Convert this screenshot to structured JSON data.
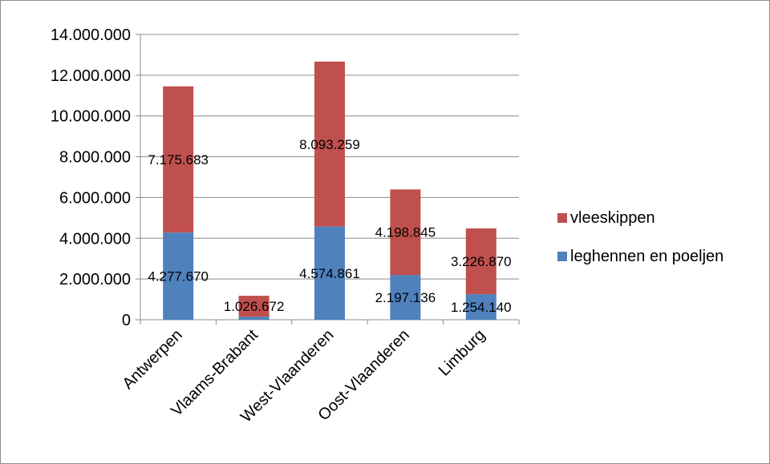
{
  "chart_data": {
    "type": "bar",
    "stacked": true,
    "categories": [
      "Antwerpen",
      "Vlaams-Brabant",
      "West-Vlaanderen",
      "Oost-Vlaanderen",
      "Limburg"
    ],
    "series": [
      {
        "name": "leghennen en poeljen",
        "color": "#4f81bd",
        "values": [
          4277670,
          150000,
          4574861,
          2197136,
          1254140
        ],
        "labels": [
          "4.277.670",
          "",
          "4.574.861",
          "2.197.136",
          "1.254.140"
        ]
      },
      {
        "name": "vleeskippen",
        "color": "#c0504d",
        "values": [
          7175683,
          1026672,
          8093259,
          4198845,
          3226870
        ],
        "labels": [
          "7.175.683",
          "1.026.672",
          "8.093.259",
          "4.198.845",
          "3.226.870"
        ]
      }
    ],
    "ylim": [
      0,
      14000000
    ],
    "yticks": [
      0,
      2000000,
      4000000,
      6000000,
      8000000,
      10000000,
      12000000,
      14000000
    ],
    "ytick_labels": [
      "0",
      "2.000.000",
      "4.000.000",
      "6.000.000",
      "8.000.000",
      "10.000.000",
      "12.000.000",
      "14.000.000"
    ],
    "grid": true,
    "legend": {
      "position": "right",
      "order": [
        "vleeskippen",
        "leghennen en poeljen"
      ]
    },
    "title": "",
    "xlabel": "",
    "ylabel": ""
  }
}
